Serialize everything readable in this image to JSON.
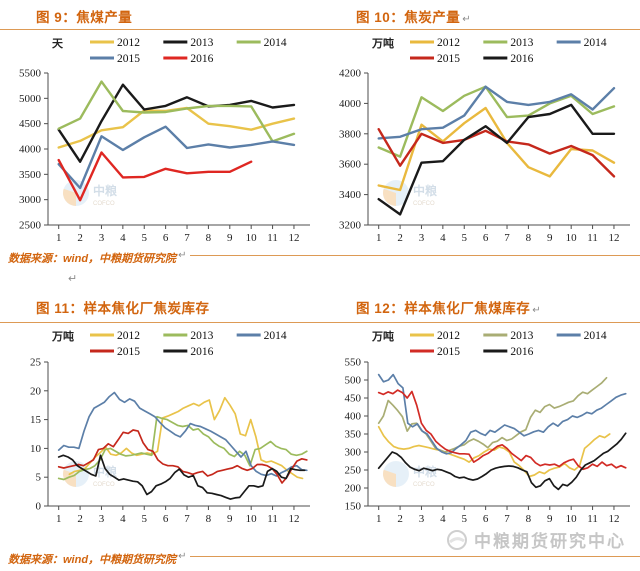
{
  "page": {
    "source_note": "数据来源：wind，中粮期货研究院",
    "return_mark": "↵",
    "footer_brand": "中粮期货研究中心",
    "accent_color": "#d2650f",
    "rule_color": "#dd9a55",
    "watermark": {
      "cn": "中粮",
      "en": "COFCO"
    }
  },
  "chart_data": [
    {
      "id": "fig9",
      "title": "图 9：焦煤产量",
      "title_mark": "",
      "type": "line",
      "unit": "天",
      "xlabel": "",
      "ylabel": "天",
      "grid": false,
      "legend_position": "top",
      "ylim": [
        2500,
        5500
      ],
      "y_ticks": [
        2500,
        3000,
        3500,
        4000,
        4500,
        5000,
        5500
      ],
      "x_ticks": [
        1,
        2,
        3,
        4,
        5,
        6,
        7,
        8,
        9,
        10,
        11,
        12
      ],
      "series": [
        {
          "name": "2012",
          "color": "#e9c34a",
          "x_start": 1,
          "x_end": 12,
          "values": [
            4030,
            4160,
            4370,
            4430,
            4760,
            4750,
            4810,
            4500,
            4450,
            4380,
            4500,
            4600
          ]
        },
        {
          "name": "2013",
          "color": "#1a1a1a",
          "x_start": 1,
          "x_end": 12,
          "values": [
            4380,
            3750,
            4550,
            5270,
            4780,
            4850,
            5020,
            4840,
            4870,
            4950,
            4820,
            4870
          ]
        },
        {
          "name": "2014",
          "color": "#9cbb5d",
          "x_start": 1,
          "x_end": 12,
          "values": [
            4400,
            4600,
            5330,
            4750,
            4720,
            4730,
            4800,
            4850,
            4850,
            4840,
            4150,
            4300
          ]
        },
        {
          "name": "2015",
          "color": "#5c7fa8",
          "x_start": 1,
          "x_end": 12,
          "values": [
            3700,
            3230,
            4250,
            3980,
            4230,
            4440,
            4020,
            4090,
            4030,
            4080,
            4150,
            4080
          ]
        },
        {
          "name": "2016",
          "color": "#df2722",
          "x_start": 1,
          "x_end": 10,
          "values": [
            3780,
            2990,
            3930,
            3440,
            3450,
            3610,
            3520,
            3550,
            3550,
            3750
          ]
        }
      ]
    },
    {
      "id": "fig10",
      "title": "图 10：焦炭产量",
      "title_mark": "↵",
      "type": "line",
      "unit": "万吨",
      "xlabel": "",
      "ylabel": "万吨",
      "grid": false,
      "legend_position": "top",
      "ylim": [
        3200,
        4200
      ],
      "y_ticks": [
        3200,
        3400,
        3600,
        3800,
        4000,
        4200
      ],
      "x_ticks": [
        1,
        2,
        3,
        4,
        5,
        6,
        7,
        8,
        9,
        10,
        11,
        12
      ],
      "series": [
        {
          "name": "2012",
          "color": "#e9b93e",
          "x_start": 1,
          "x_end": 12,
          "values": [
            3460,
            3430,
            3860,
            3750,
            3870,
            3970,
            3740,
            3580,
            3520,
            3700,
            3690,
            3610
          ]
        },
        {
          "name": "2013",
          "color": "#9cbb5d",
          "x_start": 1,
          "x_end": 12,
          "values": [
            3710,
            3650,
            4040,
            3950,
            4050,
            4110,
            3910,
            3920,
            4000,
            4050,
            3930,
            3980
          ]
        },
        {
          "name": "2014",
          "color": "#5c7fa8",
          "x_start": 1,
          "x_end": 12,
          "values": [
            3770,
            3780,
            3830,
            3840,
            3920,
            4110,
            4010,
            3990,
            4010,
            4060,
            3960,
            4100
          ]
        },
        {
          "name": "2015",
          "color": "#c5281c",
          "x_start": 1,
          "x_end": 12,
          "values": [
            3830,
            3590,
            3800,
            3740,
            3760,
            3820,
            3750,
            3730,
            3670,
            3720,
            3660,
            3520
          ]
        },
        {
          "name": "2016",
          "color": "#1a1a1a",
          "x_start": 1,
          "x_end": 12,
          "values": [
            3370,
            3270,
            3610,
            3620,
            3760,
            3850,
            3740,
            3910,
            3930,
            3990,
            3800,
            3800
          ]
        }
      ]
    },
    {
      "id": "fig11",
      "title": "图 11：样本焦化厂焦炭库存",
      "title_mark": "",
      "type": "line",
      "unit": "万吨",
      "xlabel": "",
      "ylabel": "万吨",
      "grid": false,
      "legend_position": "top",
      "ylim": [
        0,
        25
      ],
      "y_ticks": [
        0,
        5,
        10,
        15,
        20,
        25
      ],
      "x_ticks": [
        1,
        2,
        3,
        4,
        5,
        6,
        7,
        8,
        9,
        10,
        11,
        12
      ],
      "series": [
        {
          "name": "2012",
          "color": "#e9c34a",
          "x_start": 1.5,
          "x_end": 12.4,
          "values": [
            5.5,
            6.0,
            6.2,
            6.5,
            7.5,
            8.5,
            9.3,
            10.2,
            9.0,
            8.8,
            9.2,
            10.0,
            9.2,
            8.8,
            9.0,
            9.2,
            9.0,
            9.5,
            15.3,
            15.6,
            16.0,
            16.4,
            17.0,
            17.4,
            17.8,
            17.4,
            18.0,
            18.4,
            15.0,
            16.6,
            18.8,
            17.5,
            16.0,
            12.5,
            12.2,
            15.0,
            12.0,
            8.0,
            7.6,
            7.8,
            7.4,
            7.0,
            6.2,
            5.6,
            5.0,
            4.8
          ]
        },
        {
          "name": "2013",
          "color": "#9cbb5d",
          "x_start": 1,
          "x_end": 12.6,
          "values": [
            4.8,
            4.6,
            5.0,
            5.3,
            6.0,
            6.3,
            6.5,
            7.0,
            8.0,
            9.8,
            10.0,
            9.5,
            9.0,
            8.7,
            8.8,
            9.0,
            9.2,
            9.0,
            8.8,
            15.5,
            15.2,
            15.0,
            14.5,
            14.0,
            13.8,
            14.0,
            13.2,
            13.4,
            12.5,
            12.0,
            11.0,
            10.4,
            10.0,
            9.0,
            8.6,
            9.5,
            8.8,
            7.0,
            9.8,
            10.0,
            10.6,
            11.2,
            10.4,
            10.0,
            9.8,
            9.0,
            8.8,
            9.0,
            9.5
          ]
        },
        {
          "name": "2014",
          "color": "#5c7fa8",
          "x_start": 1,
          "x_end": 12.6,
          "values": [
            9.7,
            10.5,
            10.2,
            10.2,
            10.0,
            13.0,
            15.5,
            17.0,
            17.5,
            18.0,
            19.0,
            19.7,
            18.5,
            18.0,
            18.6,
            18.2,
            17.0,
            16.5,
            16.0,
            15.5,
            14.5,
            13.6,
            13.0,
            12.4,
            12.0,
            13.0,
            14.3,
            14.0,
            13.8,
            13.4,
            13.0,
            12.5,
            12.0,
            11.5,
            10.5,
            9.5,
            8.5,
            9.5,
            7.0,
            6.0,
            5.5,
            5.3,
            5.6,
            5.2,
            5.8,
            6.2,
            6.8,
            7.0,
            6.3,
            6.2
          ]
        },
        {
          "name": "2015",
          "color": "#c5281c",
          "x_start": 1,
          "x_end": 12.6,
          "values": [
            6.8,
            6.6,
            6.8,
            7.0,
            7.2,
            7.0,
            7.5,
            8.0,
            9.8,
            10.0,
            10.8,
            10.3,
            11.5,
            12.8,
            12.6,
            13.2,
            13.0,
            11.0,
            9.8,
            9.5,
            8.0,
            7.3,
            7.0,
            7.0,
            6.8,
            6.0,
            5.8,
            5.5,
            5.8,
            6.0,
            5.2,
            5.5,
            6.0,
            6.2,
            6.4,
            6.6,
            7.0,
            6.5,
            6.2,
            6.5,
            7.2,
            7.2,
            7.0,
            6.5,
            5.5,
            4.0,
            5.0,
            6.5,
            7.8,
            8.2,
            8.0
          ]
        },
        {
          "name": "2016",
          "color": "#1a1a1a",
          "x_start": 1,
          "x_end": 12.5,
          "values": [
            8.5,
            8.8,
            8.5,
            8.0,
            7.0,
            6.5,
            6.0,
            5.5,
            5.2,
            8.8,
            6.5,
            5.5,
            5.0,
            4.5,
            4.7,
            4.5,
            4.3,
            4.2,
            3.5,
            2.0,
            2.5,
            3.5,
            3.8,
            4.2,
            4.8,
            5.8,
            6.4,
            5.4,
            5.0,
            5.3,
            3.5,
            3.2,
            2.3,
            2.2,
            2.0,
            1.8,
            1.5,
            1.2,
            1.4,
            1.5,
            2.5,
            3.5,
            3.5,
            3.3,
            3.5,
            6.0,
            6.5,
            6.0,
            5.0,
            4.8,
            6.5,
            6.3,
            6.2,
            6.2
          ]
        }
      ]
    },
    {
      "id": "fig12",
      "title": "图 12：样本焦化厂焦煤库存",
      "title_mark": "↵",
      "type": "line",
      "unit": "万吨",
      "xlabel": "",
      "ylabel": "万吨",
      "grid": false,
      "legend_position": "top",
      "ylim": [
        150,
        550
      ],
      "y_ticks": [
        150,
        200,
        250,
        300,
        350,
        400,
        450,
        500,
        550
      ],
      "x_ticks": [
        1,
        2,
        3,
        4,
        5,
        6,
        7,
        8,
        9,
        10,
        11,
        12
      ],
      "series": [
        {
          "name": "2012",
          "color": "#e9c34a",
          "x_start": 1,
          "x_end": 11.8,
          "values": [
            370,
            345,
            328,
            315,
            310,
            308,
            310,
            315,
            318,
            315,
            312,
            308,
            305,
            300,
            295,
            290,
            285,
            280,
            272,
            284,
            290,
            300,
            308,
            305,
            314,
            310,
            300,
            272,
            262,
            248,
            232,
            236,
            245,
            240,
            250,
            255,
            258,
            268,
            256,
            250,
            262,
            310,
            322,
            335,
            345,
            340,
            350
          ]
        },
        {
          "name": "2013",
          "color": "#a9ad74",
          "x_start": 1,
          "x_end": 11.65,
          "values": [
            380,
            400,
            443,
            430,
            415,
            398,
            358,
            378,
            380,
            360,
            350,
            330,
            310,
            305,
            300,
            305,
            310,
            316,
            320,
            330,
            336,
            330,
            322,
            312,
            326,
            330,
            340,
            332,
            336,
            346,
            356,
            362,
            396,
            416,
            410,
            426,
            432,
            422,
            426,
            432,
            438,
            442,
            456,
            466,
            462,
            472,
            482,
            492,
            506
          ]
        },
        {
          "name": "2014",
          "color": "#5c7fa8",
          "x_start": 1,
          "x_end": 12.55,
          "values": [
            515,
            495,
            500,
            515,
            490,
            478,
            380,
            370,
            378,
            358,
            350,
            330,
            310,
            300,
            295,
            298,
            310,
            320,
            332,
            355,
            360,
            352,
            346,
            360,
            355,
            365,
            375,
            370,
            365,
            355,
            345,
            350,
            356,
            360,
            355,
            370,
            380,
            372,
            385,
            390,
            400,
            396,
            402,
            410,
            406,
            416,
            422,
            432,
            442,
            452,
            458,
            462
          ]
        },
        {
          "name": "2015",
          "color": "#d22b25",
          "x_start": 1,
          "x_end": 12.55,
          "values": [
            465,
            460,
            467,
            462,
            472,
            465,
            450,
            468,
            430,
            380,
            360,
            350,
            330,
            318,
            308,
            302,
            298,
            295,
            295,
            294,
            272,
            280,
            290,
            296,
            306,
            316,
            320,
            310,
            296,
            286,
            276,
            290,
            285,
            270,
            262,
            266,
            264,
            266,
            260,
            270,
            276,
            280,
            262,
            252,
            256,
            266,
            260,
            272,
            262,
            266,
            256,
            262,
            256
          ]
        },
        {
          "name": "2016",
          "color": "#1a1a1a",
          "x_start": 1,
          "x_end": 12.55,
          "values": [
            255,
            270,
            285,
            300,
            295,
            285,
            270,
            258,
            252,
            248,
            255,
            252,
            248,
            252,
            250,
            245,
            240,
            232,
            228,
            230,
            225,
            222,
            225,
            232,
            240,
            250,
            255,
            258,
            260,
            261,
            260,
            256,
            250,
            245,
            215,
            202,
            206,
            220,
            226,
            206,
            196,
            210,
            206,
            216,
            230,
            250,
            264,
            270,
            276,
            286,
            296,
            302,
            312,
            322,
            335,
            352
          ]
        }
      ]
    }
  ]
}
